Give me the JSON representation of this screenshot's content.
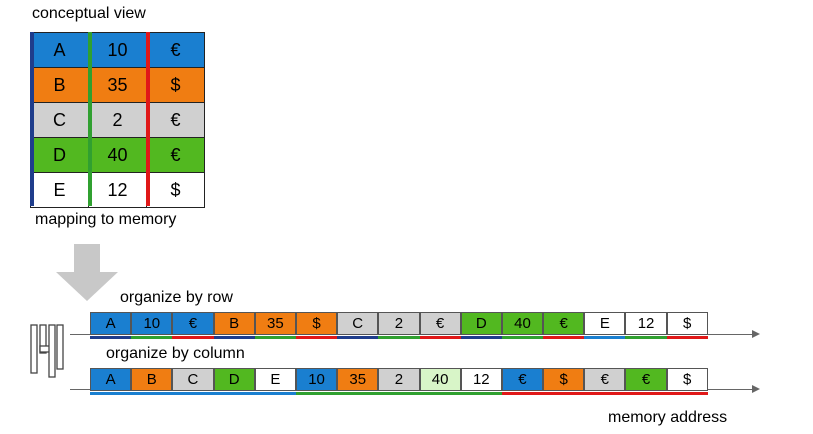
{
  "labels": {
    "conceptual_view": "conceptual view",
    "mapping": "mapping to memory",
    "by_row": "organize by row",
    "by_column": "organize by column",
    "memory_address": "memory address"
  },
  "colors": {
    "blue": "#1a7fd0",
    "orange": "#f07d12",
    "gray": "#d0d0d0",
    "green": "#52b820",
    "white": "#ffffff",
    "light_green": "#d8f5c8",
    "col1_line": "#1f3d8c",
    "col2_line": "#30a030",
    "col3_line": "#e01818"
  },
  "table": {
    "rows": [
      {
        "cells": [
          "A",
          "10",
          "€"
        ],
        "color": "blue"
      },
      {
        "cells": [
          "B",
          "35",
          "$"
        ],
        "color": "orange"
      },
      {
        "cells": [
          "C",
          "2",
          "€"
        ],
        "color": "gray"
      },
      {
        "cells": [
          "D",
          "40",
          "€"
        ],
        "color": "green"
      },
      {
        "cells": [
          "E",
          "12",
          "$"
        ],
        "color": "white"
      }
    ]
  },
  "row_layout": [
    {
      "v": "A",
      "bg": "blue",
      "u": "col1_line"
    },
    {
      "v": "10",
      "bg": "blue",
      "u": "col2_line"
    },
    {
      "v": "€",
      "bg": "blue",
      "u": "col3_line"
    },
    {
      "v": "B",
      "bg": "orange",
      "u": "col1_line"
    },
    {
      "v": "35",
      "bg": "orange",
      "u": "col2_line"
    },
    {
      "v": "$",
      "bg": "orange",
      "u": "col3_line"
    },
    {
      "v": "C",
      "bg": "gray",
      "u": "col1_line"
    },
    {
      "v": "2",
      "bg": "gray",
      "u": "col2_line"
    },
    {
      "v": "€",
      "bg": "gray",
      "u": "col3_line"
    },
    {
      "v": "D",
      "bg": "green",
      "u": "col1_line"
    },
    {
      "v": "40",
      "bg": "green",
      "u": "col2_line"
    },
    {
      "v": "€",
      "bg": "green",
      "u": "col3_line"
    },
    {
      "v": "E",
      "bg": "white",
      "u": "blue"
    },
    {
      "v": "12",
      "bg": "white",
      "u": "col2_line"
    },
    {
      "v": "$",
      "bg": "white",
      "u": "col3_line"
    }
  ],
  "column_layout": [
    {
      "v": "A",
      "bg": "blue",
      "u": "blue"
    },
    {
      "v": "B",
      "bg": "orange",
      "u": "blue"
    },
    {
      "v": "C",
      "bg": "gray",
      "u": "blue"
    },
    {
      "v": "D",
      "bg": "green",
      "u": "blue"
    },
    {
      "v": "E",
      "bg": "white",
      "u": "blue"
    },
    {
      "v": "10",
      "bg": "blue",
      "u": "col2_line"
    },
    {
      "v": "35",
      "bg": "orange",
      "u": "col2_line"
    },
    {
      "v": "2",
      "bg": "gray",
      "u": "col2_line"
    },
    {
      "v": "40",
      "bg": "light_green",
      "u": "col2_line"
    },
    {
      "v": "12",
      "bg": "white",
      "u": "col2_line"
    },
    {
      "v": "€",
      "bg": "blue",
      "u": "col3_line"
    },
    {
      "v": "$",
      "bg": "orange",
      "u": "col3_line"
    },
    {
      "v": "€",
      "bg": "gray",
      "u": "col3_line"
    },
    {
      "v": "€",
      "bg": "green",
      "u": "col3_line"
    },
    {
      "v": "$",
      "bg": "white",
      "u": "col3_line"
    }
  ]
}
